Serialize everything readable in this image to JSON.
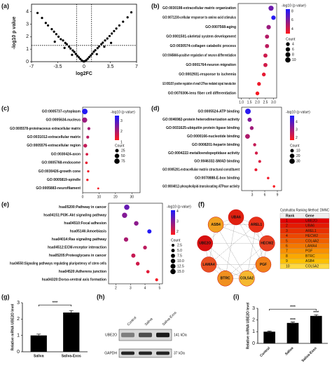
{
  "chart_data": [
    {
      "type": "volcano",
      "panel": "(a)",
      "xlabel": "log2FC",
      "ylabel": "-log10 p value",
      "xlim": [
        -7,
        7
      ],
      "ylim": [
        0,
        4.6
      ],
      "xticks": [
        -7,
        -3.5,
        0,
        3.5,
        7
      ],
      "yticks": [
        0,
        1,
        2,
        3,
        4
      ],
      "thresholds": {
        "x": [
          -1,
          1
        ],
        "y": 1.3
      },
      "color": "#000000",
      "x": [
        -6.2,
        -5.6,
        -5.1,
        -4.8,
        -4.3,
        -4.0,
        -3.7,
        -3.4,
        -3.1,
        -2.8,
        -2.5,
        -2.3,
        -2.0,
        -1.8,
        -1.5,
        -1.3,
        -1.1,
        -0.9,
        -0.7,
        -0.5,
        -0.3,
        -0.1,
        0.1,
        0.3,
        0.5,
        0.7,
        0.9,
        1.1,
        1.3,
        1.5,
        1.8,
        2.0,
        2.3,
        2.5,
        2.8,
        3.1,
        3.4,
        3.7,
        4.0,
        4.3,
        4.7,
        5.2,
        5.8,
        6.3,
        -2.6,
        -1.6,
        1.7,
        2.7,
        -3.9,
        3.6
      ],
      "y": [
        3.9,
        3.5,
        3.1,
        2.9,
        2.6,
        2.4,
        2.2,
        2.0,
        1.8,
        1.7,
        1.5,
        1.4,
        1.2,
        1.05,
        0.9,
        0.78,
        0.62,
        0.48,
        0.35,
        0.22,
        0.1,
        0.03,
        0.04,
        0.12,
        0.24,
        0.37,
        0.5,
        0.64,
        0.8,
        0.92,
        1.08,
        1.22,
        1.4,
        1.52,
        1.7,
        1.85,
        2.05,
        2.25,
        2.45,
        2.65,
        2.9,
        3.2,
        3.55,
        3.95,
        1.1,
        0.55,
        0.6,
        1.2,
        1.6,
        1.5
      ]
    },
    {
      "type": "dot",
      "panel": "(b)",
      "categories": [
        "GO:0030198-extracellular matrix organization",
        "GO:0071230-cellular response to amino acid stimulus",
        "GO:0007568-aging",
        "GO:0001501-skeletal system development",
        "GO:0030574-collagen catabolic process",
        "GO:0045666-positive regulation of neuron differentiation",
        "GO:0001764-neuron migration",
        "GO:0002931-response to ischemia",
        "GO:0051057-positive regulation of small GTPase mediated signal transduction",
        "GO:0070306-lens fiber cell differentiation"
      ],
      "values": [
        2.85,
        3.0,
        2.7,
        2.6,
        2.6,
        2.5,
        2.5,
        2.4,
        2.1,
        2.0
      ],
      "counts": [
        9,
        6,
        6,
        5,
        5,
        5,
        5,
        4,
        4,
        4
      ],
      "pvals": [
        6.5,
        8.2,
        5.4,
        4.8,
        4.6,
        4.2,
        4.1,
        3.6,
        3.4,
        3.2
      ],
      "xlim": [
        0.8,
        3.2
      ],
      "xticks": [
        {
          "value": 1,
          "label": "1.0"
        },
        1.5,
        {
          "value": 2,
          "label": "2.0"
        },
        2.5,
        {
          "value": 3,
          "label": "3.0"
        }
      ],
      "colorbar": {
        "title": "-log10 (p value)",
        "clim": [
          3,
          8.5
        ],
        "ticks": [
          4,
          6,
          8
        ],
        "colors": [
          "#ff1a1a",
          "#1a1aff"
        ]
      },
      "size_legend": {
        "title": "Count",
        "values": [
          4,
          6,
          8,
          10
        ]
      }
    },
    {
      "type": "dot",
      "panel": "(c)",
      "categories": [
        "GO:0005737-cytoplasm",
        "GO:0005634-nucleus",
        "GO:0005578-proteinaceous extracellular matrix",
        "GO:0031012-extracellular matrix",
        "GO:0005576-extracellular region",
        "GO:0030424-axon",
        "GO:0005768-endosome",
        "GO:0030426-growth cone",
        "GO:0005819-spindle",
        "GO:0005883-neurofilament"
      ],
      "values": [
        1.3,
        1.2,
        3.8,
        3.1,
        1.6,
        2.6,
        2.3,
        3.4,
        2.9,
        9.5
      ],
      "counts": [
        85,
        70,
        14,
        13,
        30,
        10,
        9,
        6,
        6,
        3
      ],
      "pvals": [
        3.4,
        2.2,
        2.1,
        1.9,
        1.8,
        1.6,
        1.4,
        1.35,
        1.3,
        1.3
      ],
      "xlim": [
        0,
        35
      ],
      "xticks": [
        0,
        10,
        20,
        30
      ],
      "colorbar": {
        "title": "-log10 (p value)",
        "clim": [
          1.2,
          3.5
        ],
        "ticks": [
          1,
          2,
          3
        ],
        "colors": [
          "#ff1a1a",
          "#1a1aff"
        ]
      },
      "size_legend": {
        "title": "Count",
        "values": [
          25,
          50,
          75
        ]
      }
    },
    {
      "type": "dot",
      "panel": "(d)",
      "categories": [
        "GO:0005524-ATP binding",
        "GO:0046982-protein heterodimerization activity",
        "GO:0031625-ubiquitin protein ligase binding",
        "GO:0000166-nucleotide binding",
        "GO:0008201-heparin binding",
        "GO:0004222-metalloendopeptidase activity",
        "GO:0046332-SMAD binding",
        "GO:0005201-extracellular matrix structural constituent",
        "GO:0070888-E-box binding",
        "GO:0004012-phospholipid-translocating ATPase activity"
      ],
      "values": [
        2.0,
        2.4,
        2.9,
        1.9,
        3.6,
        4.0,
        4.8,
        3.9,
        6.8,
        8.2
      ],
      "counts": [
        34,
        16,
        12,
        22,
        7,
        6,
        5,
        5,
        3,
        3
      ],
      "pvals": [
        4.6,
        3.4,
        3.0,
        2.8,
        2.5,
        2.3,
        2.2,
        2.0,
        1.9,
        1.8
      ],
      "xlim": [
        0.5,
        10
      ],
      "xticks": [
        3,
        6,
        9
      ],
      "colorbar": {
        "title": "-log10 (p value)",
        "clim": [
          1.7,
          4.8
        ],
        "ticks": [
          2,
          3,
          4
        ],
        "colors": [
          "#ff1a1a",
          "#1a1aff"
        ]
      },
      "size_legend": {
        "title": "Count",
        "values": [
          10,
          20,
          30
        ]
      }
    },
    {
      "type": "dot",
      "panel": "(e)",
      "categories": [
        "hsa05200:Pathway in cancer",
        "hsa04151:PI3K-Akt signaling pathway",
        "hsa04510:Focal adhesion",
        "hsa05146:Amoebiasis",
        "hsa04014:Ras signaling pathway",
        "hsa04512:ECM-receptor interaction",
        "hsa05205:Proteoglycans in cancer",
        "hsa04550:Signaling pathways regulating pluripotency of stem cells",
        "hsa04520:Adherens junction",
        "hsa04320:Dorso-ventral axis formation"
      ],
      "values": [
        2.75,
        2.6,
        3.4,
        4.3,
        2.7,
        4.0,
        3.2,
        3.5,
        4.2,
        4.8
      ],
      "counts": [
        15,
        14,
        10,
        8,
        9,
        6,
        8,
        6,
        4,
        3
      ],
      "pvals": [
        3.3,
        3.0,
        2.9,
        4.0,
        2.6,
        2.4,
        2.3,
        2.2,
        2.0,
        1.8
      ],
      "xlim": [
        1.5,
        5.2
      ],
      "xticks": [
        2,
        3,
        4,
        5
      ],
      "colorbar": {
        "title": "-log10 (p value)",
        "clim": [
          1.7,
          4.1
        ],
        "ticks": [
          2,
          3,
          4
        ],
        "colors": [
          "#ff1a1a",
          "#1a1aff"
        ]
      },
      "size_legend": {
        "title": "Count",
        "values": [
          2.5,
          5,
          7.5,
          10,
          12.5,
          15
        ],
        "labels": [
          "2.5",
          "5.0",
          "7.5",
          "10.0",
          "12.5",
          "15.0"
        ]
      }
    },
    {
      "type": "network",
      "panel": "(f)",
      "nodes": [
        {
          "label": "ASB4",
          "color": "#f0a020"
        },
        {
          "label": "UBA6",
          "color": "#e02010"
        },
        {
          "label": "AREL1",
          "color": "#e83018"
        },
        {
          "label": "HECW2",
          "color": "#e84020"
        },
        {
          "label": "PGF",
          "color": "#f08018"
        },
        {
          "label": "COL5A2",
          "color": "#f5b830"
        },
        {
          "label": "BTRC",
          "color": "#f09020"
        },
        {
          "label": "LAMA4",
          "color": "#e85020"
        },
        {
          "label": "UBE2O",
          "color": "#d81010"
        }
      ],
      "table": {
        "caption": "Cytohubba Ranking Method: DMNC",
        "columns": [
          "Rank",
          "Gene"
        ],
        "rows": [
          [
            1,
            "UBE2O"
          ],
          [
            2,
            "UBA6"
          ],
          [
            3,
            "AREL1"
          ],
          [
            4,
            "HECW2"
          ],
          [
            5,
            "COL4A2"
          ],
          [
            6,
            "LAMA4"
          ],
          [
            7,
            "PGF"
          ],
          [
            8,
            "BTRC"
          ],
          [
            9,
            "ASB4"
          ],
          [
            10,
            "COL5A2"
          ]
        ],
        "colors": [
          "#e00000",
          "#e41a00",
          "#e83000",
          "#ec4800",
          "#f06000",
          "#f47800",
          "#f89000",
          "#fba800",
          "#fdc000",
          "#ffd840"
        ]
      }
    },
    {
      "type": "bar",
      "panel": "(g)",
      "ylabel": "Relative mRNA UBE2O level",
      "categories": [
        "Saliva",
        "Saliva-Exos"
      ],
      "values": [
        1.0,
        2.4
      ],
      "errors": [
        0.08,
        0.12
      ],
      "color": "#000000",
      "ylim": [
        0,
        3
      ],
      "yticks": [
        0,
        1,
        2,
        3
      ],
      "brackets": [
        {
          "label": "****",
          "between": [
            "Saliva",
            "Saliva-Exos"
          ]
        }
      ],
      "bar_labels": [
        null,
        null
      ]
    },
    {
      "type": "blot",
      "panel": "(h)",
      "lanes": [
        "Control",
        "Saliva",
        "Saliva-Exos"
      ],
      "bands": [
        {
          "name": "UBE2O",
          "size": "141 kDa"
        },
        {
          "name": "GAPDH",
          "size": "37 kDa"
        }
      ]
    },
    {
      "type": "bar",
      "panel": "(i)",
      "ylabel": "Relative mRNA UBE2O level",
      "categories": [
        "Control",
        "Saliva",
        "Saliva-Exos"
      ],
      "values": [
        1.0,
        1.75,
        2.35
      ],
      "errors": [
        0.05,
        0.08,
        0.1
      ],
      "color": "#000000",
      "ylim": [
        0,
        3
      ],
      "yticks": [
        0,
        1,
        2,
        3
      ],
      "brackets": [
        {
          "label": "****",
          "between": [
            "Control",
            "Saliva-Exos"
          ]
        }
      ],
      "bar_labels": [
        null,
        "****",
        "****"
      ]
    }
  ]
}
